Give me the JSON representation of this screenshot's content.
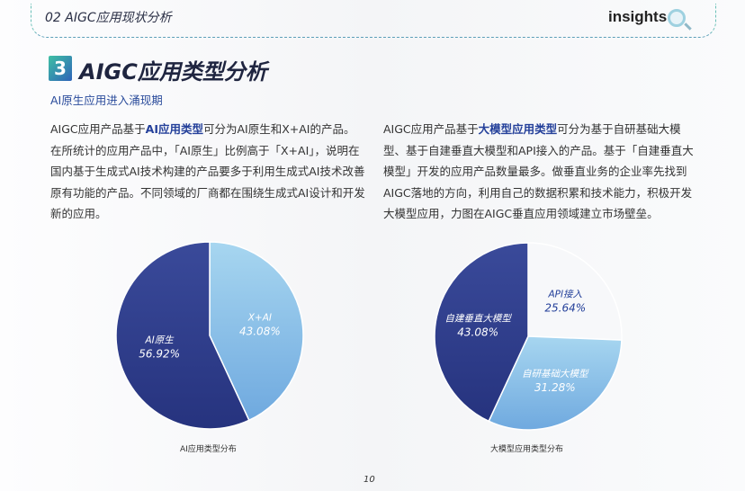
{
  "header": {
    "section": "02   AIGC应用现状分析",
    "logo": "insights"
  },
  "section": {
    "number": "3",
    "title": "AIGC应用类型分析",
    "subtitle": "AI原生应用进入涌现期"
  },
  "left_text": {
    "pre": "AIGC应用产品基于",
    "bold": "AI应用类型",
    "post": "可分为AI原生和X+AI的产品。在所统计的应用产品中，「AI原生」比例高于「X+AI」，说明在国内基于生成式AI技术构建的产品要多于利用生成式AI技术改善原有功能的产品。不同领域的厂商都在围绕生成式AI设计和开发新的应用。"
  },
  "right_text": {
    "pre": "AIGC应用产品基于",
    "bold": "大模型应用类型",
    "post": "可分为基于自研基础大模型、基于自建垂直大模型和API接入的产品。基于「自建垂直大模型」开发的应用产品数量最多。做垂直业务的企业率先找到AIGC落地的方向，利用自己的数据积累和技术能力，积极开发大模型应用，力图在AIGC垂直应用领域建立市场壁垒。"
  },
  "chart_data": [
    {
      "type": "pie",
      "title": "AI应用类型分布",
      "slices": [
        {
          "label": "X+AI",
          "value": 43.08,
          "display": "43.08%",
          "color": "#8cc6ea"
        },
        {
          "label": "AI原生",
          "value": 56.92,
          "display": "56.92%",
          "color": "#2f3f8f"
        }
      ]
    },
    {
      "type": "pie",
      "title": "大模型应用类型分布",
      "slices": [
        {
          "label": "API接入",
          "value": 25.64,
          "display": "25.64%",
          "color": "#f7f8fa"
        },
        {
          "label": "自研基础大模型",
          "value": 31.28,
          "display": "31.28%",
          "color": "#8cc6ea"
        },
        {
          "label": "自建垂直大模型",
          "value": 43.08,
          "display": "43.08%",
          "color": "#2f3f8f"
        }
      ]
    }
  ],
  "page_number": "10"
}
